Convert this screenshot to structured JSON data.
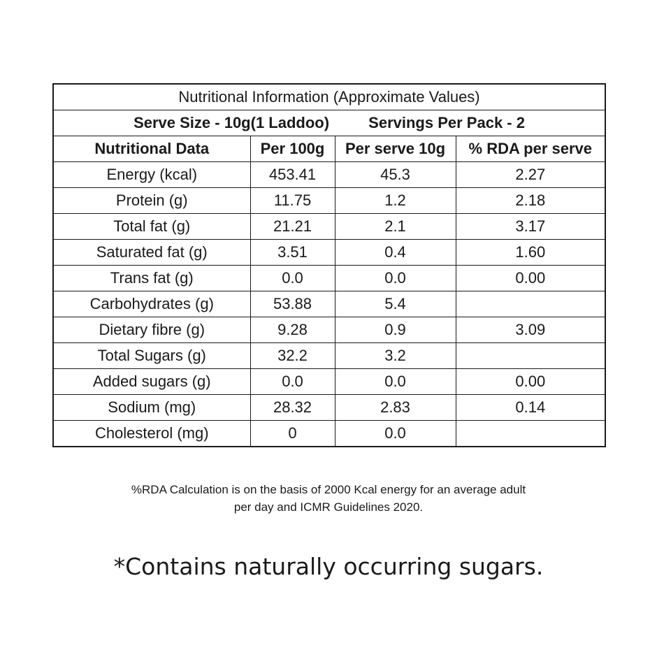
{
  "title": "Nutritional Information (Approximate Values)",
  "serve_size": "Serve Size - 10g(1 Laddoo)",
  "servings_per_pack": "Servings Per Pack - 2",
  "headers": [
    "Nutritional Data",
    "Per 100g",
    "Per serve 10g",
    "% RDA per serve"
  ],
  "rows": [
    [
      "Energy (kcal)",
      "453.41",
      "45.3",
      "2.27"
    ],
    [
      "Protein (g)",
      "11.75",
      "1.2",
      "2.18"
    ],
    [
      "Total fat (g)",
      "21.21",
      "2.1",
      "3.17"
    ],
    [
      "Saturated fat (g)",
      "3.51",
      "0.4",
      "1.60"
    ],
    [
      "Trans fat (g)",
      "0.0",
      "0.0",
      "0.00"
    ],
    [
      "Carbohydrates (g)",
      "53.88",
      "5.4",
      ""
    ],
    [
      "Dietary fibre (g)",
      "9.28",
      "0.9",
      "3.09"
    ],
    [
      "Total Sugars (g)",
      "32.2",
      "3.2",
      ""
    ],
    [
      "Added sugars (g)",
      "0.0",
      "0.0",
      "0.00"
    ],
    [
      "Sodium (mg)",
      "28.32",
      "2.83",
      "0.14"
    ],
    [
      "Cholesterol (mg)",
      "0",
      "0.0",
      ""
    ]
  ],
  "footnote_line1": "%RDA Calculation is on the basis of 2000 Kcal energy for an average adult",
  "footnote_line2": "per day and ICMR Guidelines 2020.",
  "sugar_note": "*Contains naturally occurring sugars."
}
